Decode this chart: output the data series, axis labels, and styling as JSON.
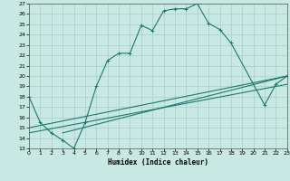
{
  "xlabel": "Humidex (Indice chaleur)",
  "xlim": [
    0,
    23
  ],
  "ylim": [
    13,
    27
  ],
  "xticks": [
    0,
    1,
    2,
    3,
    4,
    5,
    6,
    7,
    8,
    9,
    10,
    11,
    12,
    13,
    14,
    15,
    16,
    17,
    18,
    19,
    20,
    21,
    22,
    23
  ],
  "yticks": [
    13,
    14,
    15,
    16,
    17,
    18,
    19,
    20,
    21,
    22,
    23,
    24,
    25,
    26,
    27
  ],
  "bg_color": "#c8e8e4",
  "grid_color": "#aad4ce",
  "line_color": "#1a7a6e",
  "line1_x": [
    0,
    1,
    2,
    3,
    4,
    5,
    6,
    7,
    8,
    9,
    10,
    11,
    12,
    13,
    14,
    15,
    16,
    17,
    18,
    21,
    22,
    23
  ],
  "line1_y": [
    18.0,
    15.5,
    14.5,
    13.8,
    13.0,
    15.5,
    19.0,
    21.5,
    22.2,
    22.2,
    24.9,
    24.4,
    26.3,
    26.5,
    26.5,
    27.0,
    25.1,
    24.5,
    23.2,
    17.2,
    19.2,
    20.0
  ],
  "line2_x": [
    0,
    23
  ],
  "line2_y": [
    15.0,
    20.0
  ],
  "line3_x": [
    0,
    23
  ],
  "line3_y": [
    14.5,
    19.2
  ],
  "line4_x": [
    3,
    23
  ],
  "line4_y": [
    14.5,
    20.0
  ]
}
